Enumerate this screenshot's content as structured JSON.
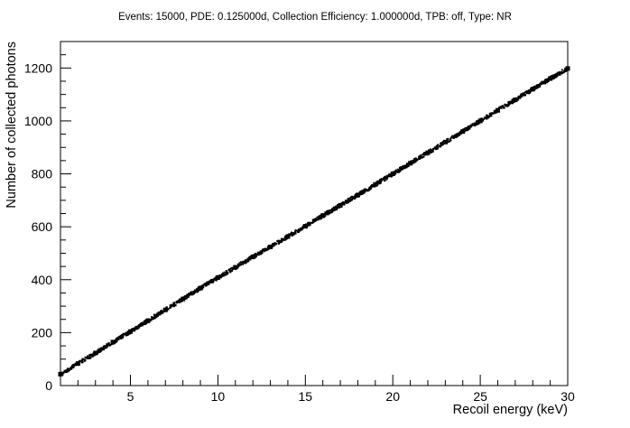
{
  "chart_data": {
    "type": "scatter",
    "title": "Events: 15000, PDE: 0.125000d, Collection Efficiency: 1.000000d, TPB: off, Type: NR",
    "xlabel": "Recoil energy (keV)",
    "ylabel": "Number of collected photons",
    "xlim": [
      1,
      30
    ],
    "ylim": [
      0,
      1300
    ],
    "x_ticks": [
      5,
      10,
      15,
      20,
      25,
      30
    ],
    "y_ticks": [
      0,
      200,
      400,
      600,
      800,
      1000,
      1200
    ],
    "grid": false,
    "legend": "none",
    "marker_color": "#000000",
    "series": [
      {
        "x": [
          1,
          2,
          3,
          4,
          5,
          6,
          7,
          8,
          9,
          10,
          11,
          12,
          13,
          14,
          15,
          16,
          17,
          18,
          19,
          20,
          21,
          22,
          23,
          24,
          25,
          26,
          27,
          28,
          29,
          30
        ],
        "values": [
          43,
          83,
          123,
          164,
          204,
          245,
          286,
          327,
          368,
          408,
          447,
          486,
          524,
          563,
          602,
          642,
          681,
          720,
          760,
          800,
          840,
          880,
          920,
          960,
          1000,
          1040,
          1080,
          1120,
          1160,
          1198
        ]
      }
    ]
  }
}
